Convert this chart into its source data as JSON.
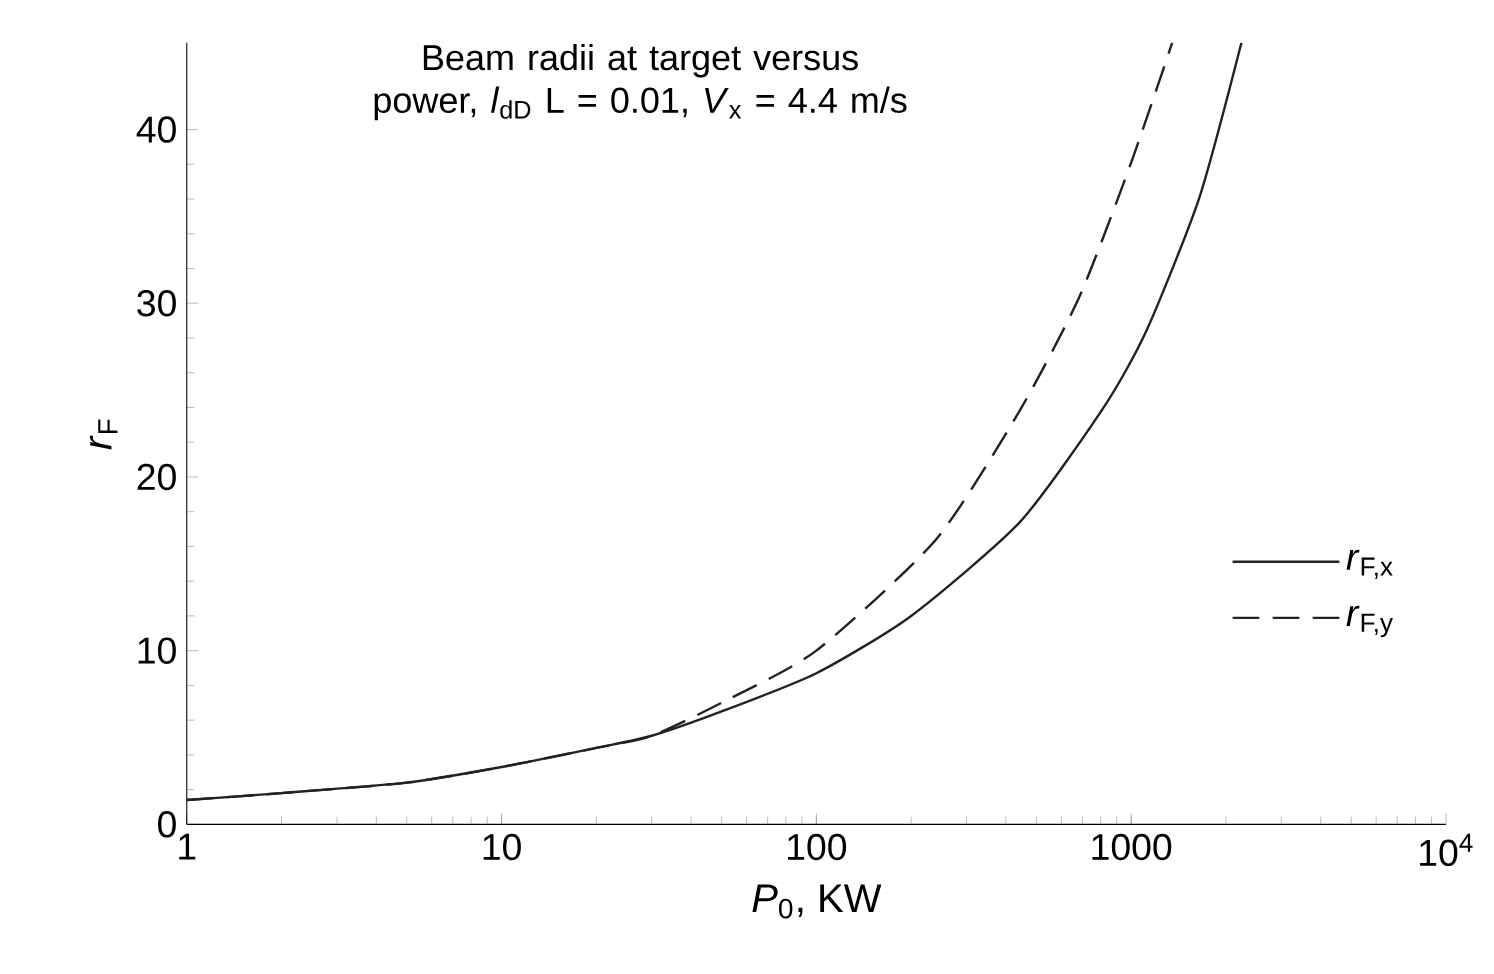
{
  "chart_data": {
    "type": "line",
    "title": "Beam radii at target versus power, *l*$_{dD}$ L = 0.01, *V*$_{x}$ = 4.4 m/s",
    "xlabel": "*P*$_{0}$, KW",
    "ylabel": "*r*$_{F}$",
    "log": "x",
    "xlim": [
      1,
      10000
    ],
    "ylim": [
      0,
      45
    ],
    "xticks": [
      1,
      10,
      100,
      1000,
      {
        "value": 10000,
        "label": "10$^{4}$"
      }
    ],
    "yticks": [
      0,
      10,
      20,
      30,
      40
    ],
    "grid": false,
    "legend": "right",
    "series": [
      {
        "name": "*r*$_{F,x}$",
        "color": "#222222",
        "line_style": "solid",
        "x": [
          1,
          2,
          5,
          10,
          20,
          30,
          50,
          100,
          200,
          443,
          811,
          1117,
          1648,
          2240
        ],
        "values": [
          1.4,
          1.8,
          2.4,
          3.3,
          4.4,
          5.1,
          6.5,
          8.7,
          12,
          17.4,
          23.9,
          28.4,
          36.1,
          45
        ]
      },
      {
        "name": "*r*$_{F,y}$",
        "color": "#222222",
        "line_style": "dashed",
        "x": [
          1,
          2,
          5,
          10,
          20,
          30,
          50,
          100,
          240,
          442,
          686,
          1000,
          1350
        ],
        "values": [
          1.4,
          1.8,
          2.4,
          3.3,
          4.4,
          5.1,
          7.0,
          10,
          16.4,
          23.8,
          30.4,
          38.1,
          45
        ]
      }
    ]
  }
}
